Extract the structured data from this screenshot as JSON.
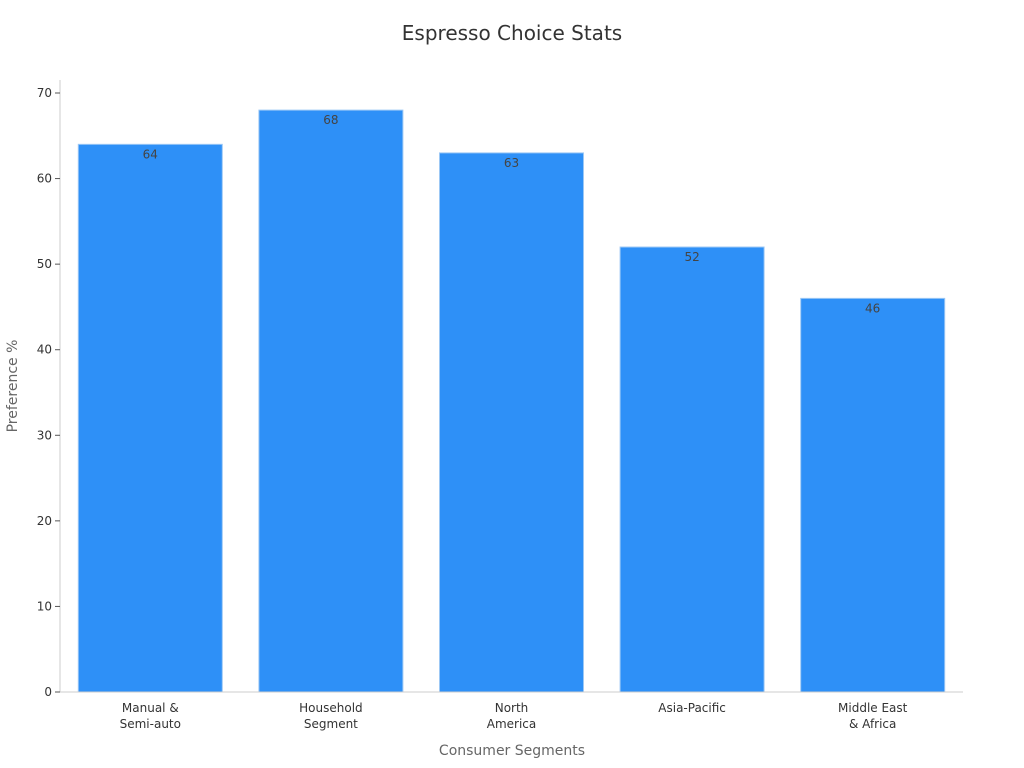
{
  "chart_data": {
    "type": "bar",
    "title": "Espresso Choice Stats",
    "xlabel": "Consumer Segments",
    "ylabel": "Preference %",
    "categories": [
      [
        "Manual &",
        "Semi-auto"
      ],
      [
        "Household",
        "Segment"
      ],
      [
        "North",
        "America"
      ],
      [
        "Asia-Pacific"
      ],
      [
        "Middle East",
        "& Africa"
      ]
    ],
    "values": [
      64,
      68,
      63,
      52,
      46
    ],
    "ylim": [
      0,
      70
    ],
    "yticks": [
      0,
      10,
      20,
      30,
      40,
      50,
      60,
      70
    ],
    "grid": false,
    "legend": "none",
    "colors": {
      "bar": "#2e90f7",
      "bar_edge": "#9cc8f5",
      "axis": "#cccccc"
    }
  }
}
